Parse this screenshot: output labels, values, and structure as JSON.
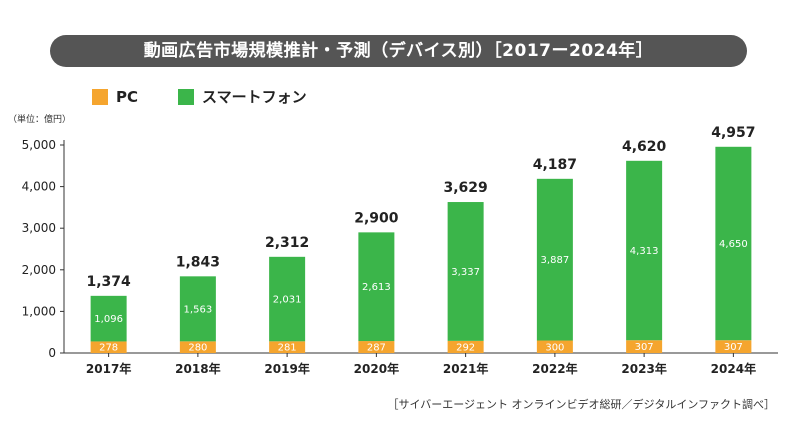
{
  "header": {
    "title": "動画広告市場規模推計・予測（デバイス別）［2017ー2024年］"
  },
  "unit_label": "（単位：億円）",
  "source": "［サイバーエージェント オンラインビデオ総研／デジタルインファクト調べ］",
  "colors": {
    "pc": "#F5A52E",
    "smartphone": "#3BB54A"
  },
  "chart_data": {
    "type": "bar",
    "stacked": true,
    "categories": [
      "2017年",
      "2018年",
      "2019年",
      "2020年",
      "2021年",
      "2022年",
      "2023年",
      "2024年"
    ],
    "series": [
      {
        "name": "PC",
        "values": [
          278,
          280,
          281,
          287,
          292,
          300,
          307,
          307
        ]
      },
      {
        "name": "スマートフォン",
        "values": [
          1096,
          1563,
          2031,
          2613,
          3337,
          3887,
          4313,
          4650
        ]
      }
    ],
    "series_labels": {
      "PC": [
        "278",
        "280",
        "281",
        "287",
        "292",
        "300",
        "307",
        "307"
      ],
      "スマートフォン": [
        "1,096",
        "1,563",
        "2,031",
        "2,613",
        "3,337",
        "3,887",
        "4,313",
        "4,650"
      ]
    },
    "totals": [
      "1,374",
      "1,843",
      "2,312",
      "2,900",
      "3,629",
      "4,187",
      "4,620",
      "4,957"
    ],
    "yticks": [
      "0",
      "1,000",
      "2,000",
      "3,000",
      "4,000",
      "5,000"
    ],
    "ylim": [
      0,
      5000
    ],
    "legend_position": "top-left",
    "grid": false
  }
}
